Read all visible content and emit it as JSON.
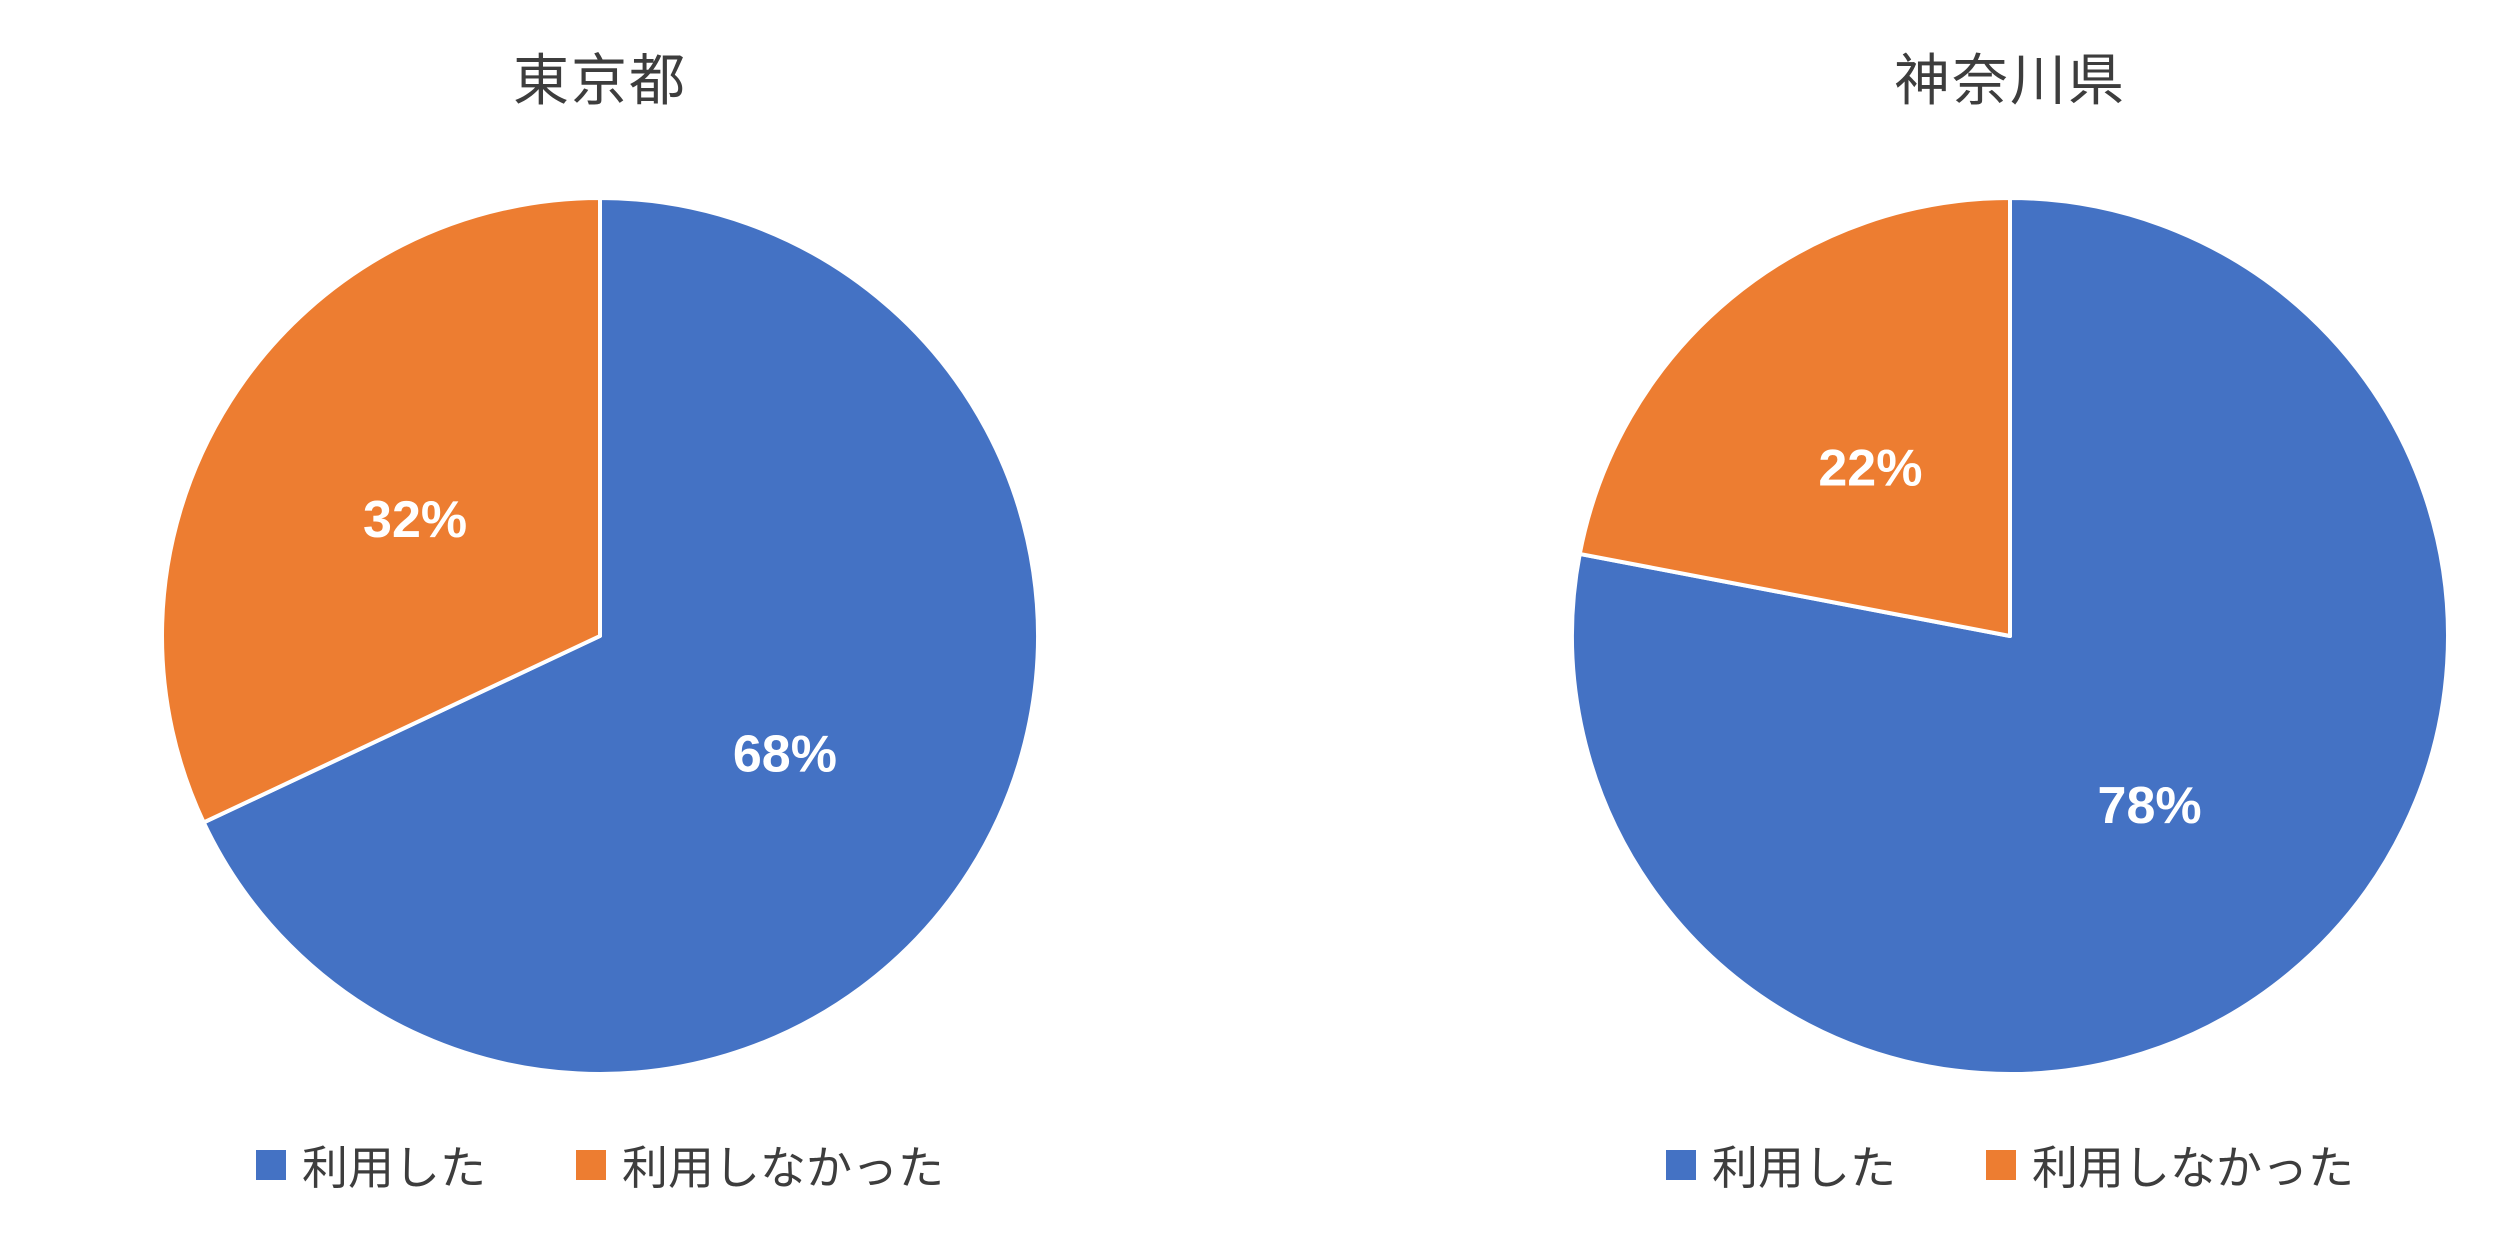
{
  "palette": {
    "used": "#4472C4",
    "not_used": "#ED7D31",
    "text": "#3d3d3d",
    "data_label_text": "#ffffff",
    "slice_border": "#ffffff"
  },
  "chart_data": [
    {
      "type": "pie",
      "title": "東京都",
      "labels": [
        "利用した",
        "利用しなかった"
      ],
      "values": [
        68,
        32
      ],
      "data_labels": [
        "68%",
        "32%"
      ],
      "colors": [
        "#4472C4",
        "#ED7D31"
      ],
      "start_angle_deg": 0,
      "direction": "clockwise",
      "legend_position": "bottom"
    },
    {
      "type": "pie",
      "title": "神奈川県",
      "labels": [
        "利用した",
        "利用しなかった"
      ],
      "values": [
        78,
        22
      ],
      "data_labels": [
        "78%",
        "22%"
      ],
      "colors": [
        "#4472C4",
        "#ED7D31"
      ],
      "start_angle_deg": 0,
      "direction": "clockwise",
      "legend_position": "bottom"
    }
  ]
}
